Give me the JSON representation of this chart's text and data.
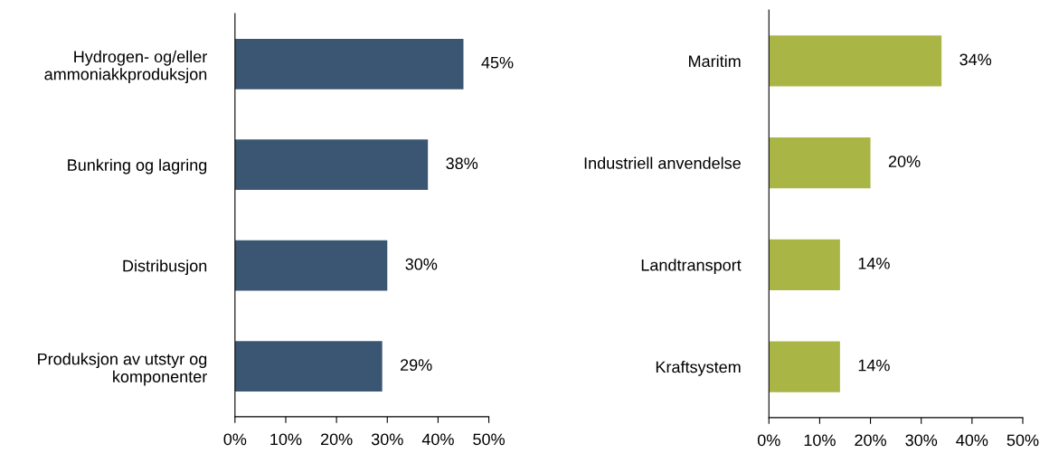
{
  "chart_data": [
    {
      "type": "bar",
      "orientation": "horizontal",
      "categories": [
        "Hydrogen- og/eller\nammoniakkproduksjon",
        "Bunkring og lagring",
        "Distribusjon",
        "Produksjon av utstyr og\nkomponenter"
      ],
      "values": [
        45,
        38,
        30,
        29
      ],
      "color": "#3b5672",
      "value_labels": [
        "45%",
        "38%",
        "30%",
        "29%"
      ],
      "xlim": [
        0,
        50
      ],
      "xticks": [
        {
          "value": 0,
          "label": "0%"
        },
        {
          "value": 10,
          "label": "10%"
        },
        {
          "value": 20,
          "label": "20%"
        },
        {
          "value": 30,
          "label": "30%"
        },
        {
          "value": 40,
          "label": "40%"
        },
        {
          "value": 50,
          "label": "50%"
        }
      ],
      "grid": false,
      "legend": false
    },
    {
      "type": "bar",
      "orientation": "horizontal",
      "categories": [
        "Maritim",
        "Industriell anvendelse",
        "Landtransport",
        "Kraftsystem"
      ],
      "values": [
        34,
        20,
        14,
        14
      ],
      "color": "#a9b545",
      "value_labels": [
        "34%",
        "20%",
        "14%",
        "14%"
      ],
      "xlim": [
        0,
        50
      ],
      "xticks": [
        {
          "value": 0,
          "label": "0%"
        },
        {
          "value": 10,
          "label": "10%"
        },
        {
          "value": 20,
          "label": "20%"
        },
        {
          "value": 30,
          "label": "30%"
        },
        {
          "value": 40,
          "label": "40%"
        },
        {
          "value": 50,
          "label": "50%"
        }
      ],
      "grid": false,
      "legend": false
    }
  ]
}
